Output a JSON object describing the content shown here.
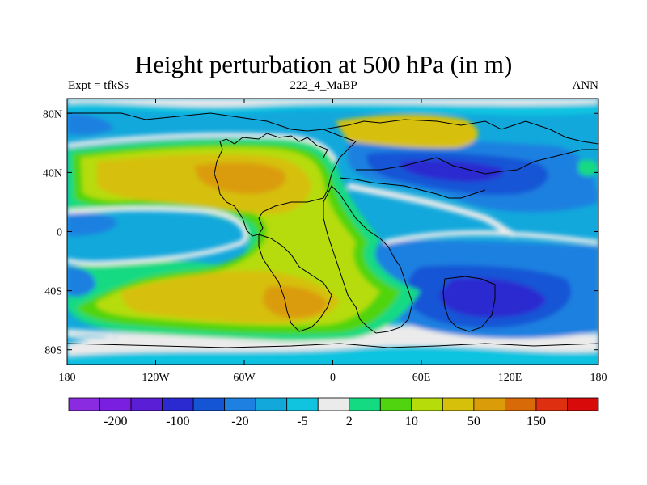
{
  "title": "Height perturbation at 500 hPa (in m)",
  "subtitle_left": "Expt = tfkSs",
  "subtitle_center": "222_4_MaBP",
  "subtitle_right": "ANN",
  "map": {
    "projection": "cylindrical equidistant",
    "lon_range": [
      -180,
      180
    ],
    "lat_range": [
      -90,
      90
    ],
    "x_tick_labels": [
      "180",
      "120W",
      "60W",
      "0",
      "60E",
      "120E",
      "180"
    ],
    "y_tick_labels": [
      "80N",
      "40N",
      "0",
      "40S",
      "80S"
    ],
    "coastline_color": "#000000"
  },
  "colorbar": {
    "colors": [
      "#8a2be2",
      "#7a1fe0",
      "#5a1ed6",
      "#2a2ad0",
      "#1455d6",
      "#1e80e0",
      "#12a8dc",
      "#10c4e0",
      "#ebebeb",
      "#14da82",
      "#50d410",
      "#b6dc0a",
      "#d6c00a",
      "#da9c08",
      "#d86a08",
      "#de3010",
      "#d80a0a"
    ],
    "labels": [
      "-200",
      "-100",
      "-20",
      "-5",
      "2",
      "10",
      "50",
      "150"
    ]
  }
}
